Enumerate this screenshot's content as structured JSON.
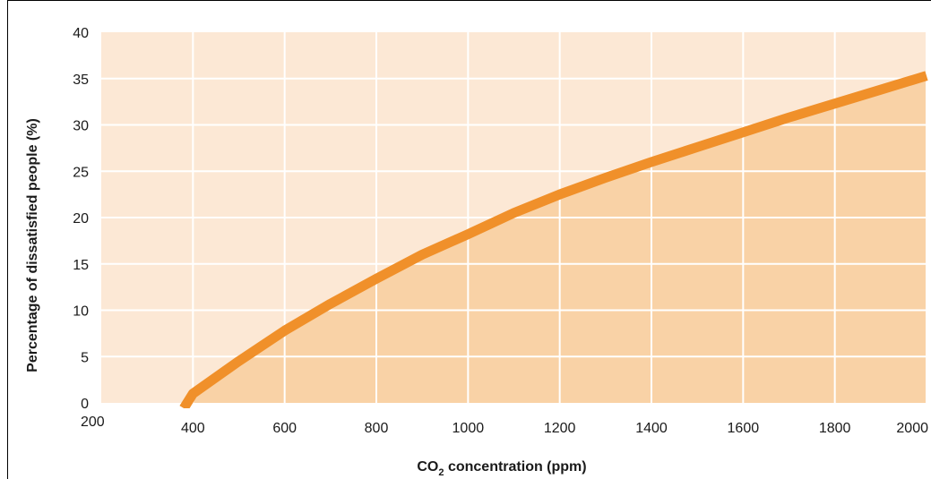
{
  "chart_data": {
    "type": "area",
    "title": "",
    "xlabel": {
      "prefix": "CO",
      "subscript": "2",
      "suffix": " concentration (ppm)"
    },
    "ylabel": "Percentage of dissatisfied people (%)",
    "xlim": [
      200,
      2000
    ],
    "ylim": [
      0,
      40
    ],
    "x_ticks": [
      200,
      400,
      600,
      800,
      1000,
      1200,
      1400,
      1600,
      1800,
      2000
    ],
    "x_tick_labels": [
      "200",
      "400",
      "600",
      "800",
      "1000",
      "1200",
      "1400",
      "1600",
      "1800",
      "2000"
    ],
    "y_ticks": [
      0,
      5,
      10,
      15,
      20,
      25,
      30,
      35,
      40
    ],
    "y_tick_labels": [
      "0",
      "5",
      "10",
      "15",
      "20",
      "25",
      "30",
      "35",
      "40"
    ],
    "grid": true,
    "legend": "none",
    "series": [
      {
        "x": [
          380,
          400,
          500,
          600,
          700,
          800,
          900,
          1000,
          1100,
          1200,
          1300,
          1400,
          1500,
          1600,
          1700,
          1800,
          1900,
          2000
        ],
        "y": [
          0,
          1.0,
          4.5,
          7.8,
          10.7,
          13.4,
          16.0,
          18.2,
          20.5,
          22.5,
          24.3,
          26.0,
          27.6,
          29.2,
          30.8,
          32.3,
          33.8,
          35.3
        ]
      }
    ],
    "colors": {
      "background_fill": "#fce8d5",
      "area_fill": "#f9d2a6",
      "line": "#f0902a",
      "grid": "#ffffff",
      "frame": "#000000"
    }
  }
}
